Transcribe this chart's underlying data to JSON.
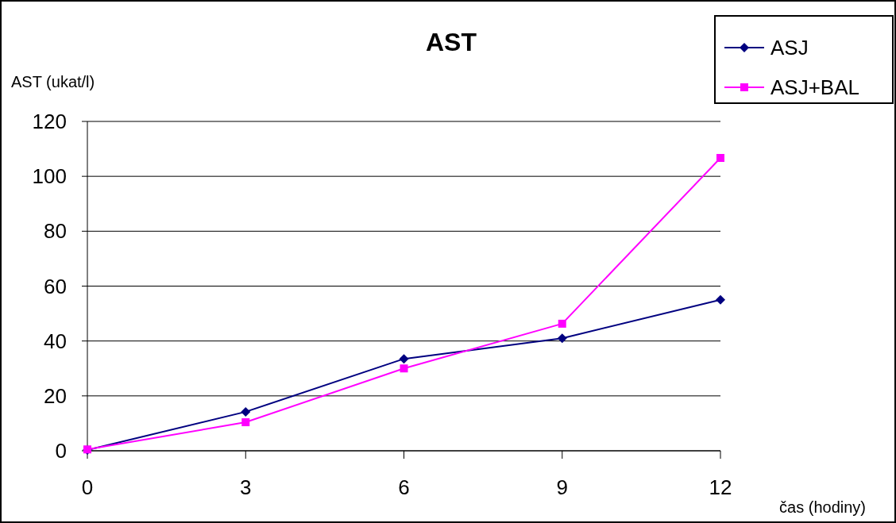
{
  "chart_data": {
    "type": "line",
    "title": "AST",
    "ylabel": "AST (ukat/l)",
    "xlabel": "čas (hodiny)",
    "x": [
      0,
      3,
      6,
      9,
      12
    ],
    "series": [
      {
        "name": "ASJ",
        "color": "#000080",
        "values": [
          0.3,
          14.2,
          33.5,
          41,
          55
        ],
        "marker": "diamond"
      },
      {
        "name": "ASJ+BAL",
        "color": "#ff00ff",
        "values": [
          0.5,
          10.4,
          30,
          46.3,
          106.7
        ],
        "marker": "square"
      }
    ],
    "xlim": [
      0,
      12
    ],
    "xticks": [
      0,
      3,
      6,
      9,
      12
    ],
    "ylim": [
      0,
      120
    ],
    "yticks": [
      0,
      20,
      40,
      60,
      80,
      100,
      120
    ],
    "grid": "y",
    "legend": "top right",
    "line_style": "solid"
  }
}
